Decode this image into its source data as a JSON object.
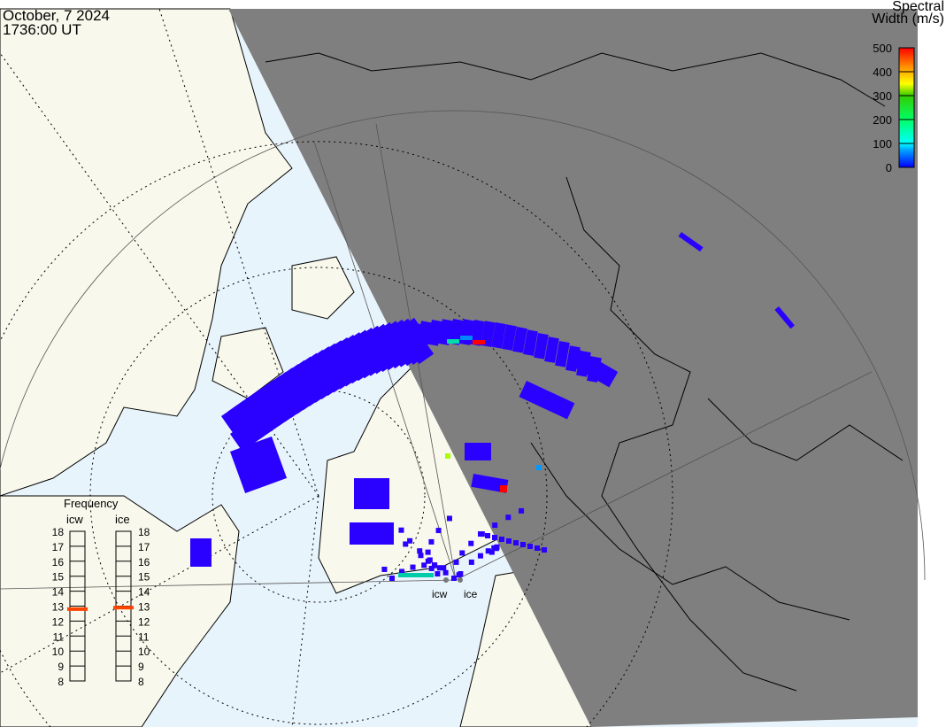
{
  "header": {
    "date": "October, 7 2024",
    "time": "1736:00 UT"
  },
  "colorbar": {
    "title_line1": "Spectral",
    "title_line2": "Width (m/s)",
    "ticks": [
      "500",
      "400",
      "300",
      "200",
      "100",
      "0"
    ],
    "colors": [
      "#ff0000",
      "#ff7700",
      "#ffff00",
      "#00dd00",
      "#00ffcc",
      "#00ccff",
      "#0000ff"
    ]
  },
  "frequency": {
    "title": "Frequency",
    "radars": [
      {
        "name": "icw",
        "value_mhz": 12.8
      },
      {
        "name": "ice",
        "value_mhz": 12.9
      }
    ],
    "ticks": [
      "8",
      "9",
      "10",
      "11",
      "12",
      "13",
      "14",
      "15",
      "16",
      "17",
      "18"
    ],
    "marker_color": "#ff4400"
  },
  "map": {
    "radar_labels": [
      "icw",
      "ice"
    ],
    "colors": {
      "ocean": "#e8f4fc",
      "land": "#f8f8ec",
      "night": "#7f7f7f",
      "echo": "#2a00ff"
    }
  }
}
